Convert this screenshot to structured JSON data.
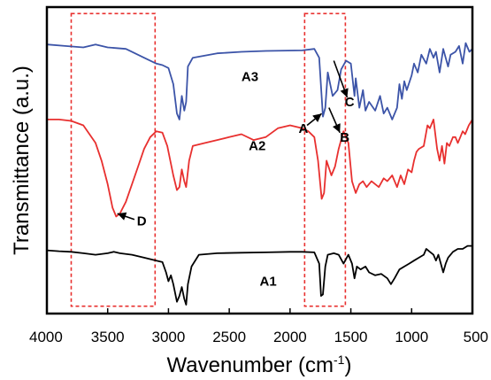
{
  "chart_data": {
    "type": "line",
    "title": "",
    "xlabel": "Wavenumber (cm",
    "xlabel_sup": "-1",
    "xlabel_close": ")",
    "ylabel": "Transmittance (a.u.)",
    "x_reversed": true,
    "xlim": [
      4000,
      500
    ],
    "ylim": [
      0,
      1
    ],
    "x_ticks": [
      {
        "value": 4000,
        "label": "4000"
      },
      {
        "value": 3500,
        "label": "3500"
      },
      {
        "value": 3000,
        "label": "3000"
      },
      {
        "value": 2500,
        "label": "2500"
      },
      {
        "value": 2000,
        "label": "2000"
      },
      {
        "value": 1500,
        "label": "1500"
      },
      {
        "value": 1000,
        "label": "1000"
      },
      {
        "value": 500,
        "label": "500"
      }
    ],
    "grid": false,
    "colors": {
      "A1": "#000000",
      "A2": "#e8302f",
      "A3": "#3c54a8",
      "highlight": "#e8302f"
    },
    "series": [
      {
        "name": "A3",
        "label_at": [
          2330,
          0.79
        ],
        "points": [
          [
            4000,
            0.915
          ],
          [
            3850,
            0.91
          ],
          [
            3700,
            0.905
          ],
          [
            3600,
            0.915
          ],
          [
            3500,
            0.905
          ],
          [
            3350,
            0.9
          ],
          [
            3200,
            0.87
          ],
          [
            3100,
            0.85
          ],
          [
            3050,
            0.845
          ],
          [
            3000,
            0.835
          ],
          [
            2960,
            0.78
          ],
          [
            2930,
            0.68
          ],
          [
            2910,
            0.66
          ],
          [
            2890,
            0.74
          ],
          [
            2870,
            0.69
          ],
          [
            2855,
            0.72
          ],
          [
            2840,
            0.84
          ],
          [
            2800,
            0.87
          ],
          [
            2600,
            0.885
          ],
          [
            2400,
            0.89
          ],
          [
            2200,
            0.893
          ],
          [
            1900,
            0.895
          ],
          [
            1800,
            0.9
          ],
          [
            1760,
            0.87
          ],
          [
            1730,
            0.67
          ],
          [
            1710,
            0.7
          ],
          [
            1690,
            0.82
          ],
          [
            1650,
            0.74
          ],
          [
            1610,
            0.76
          ],
          [
            1580,
            0.83
          ],
          [
            1540,
            0.86
          ],
          [
            1500,
            0.85
          ],
          [
            1470,
            0.74
          ],
          [
            1460,
            0.8
          ],
          [
            1430,
            0.7
          ],
          [
            1400,
            0.76
          ],
          [
            1380,
            0.69
          ],
          [
            1350,
            0.72
          ],
          [
            1300,
            0.69
          ],
          [
            1260,
            0.74
          ],
          [
            1230,
            0.68
          ],
          [
            1200,
            0.7
          ],
          [
            1160,
            0.66
          ],
          [
            1120,
            0.7
          ],
          [
            1100,
            0.78
          ],
          [
            1080,
            0.73
          ],
          [
            1060,
            0.79
          ],
          [
            1040,
            0.76
          ],
          [
            1000,
            0.81
          ],
          [
            980,
            0.85
          ],
          [
            950,
            0.82
          ],
          [
            920,
            0.88
          ],
          [
            880,
            0.85
          ],
          [
            850,
            0.9
          ],
          [
            820,
            0.87
          ],
          [
            800,
            0.89
          ],
          [
            770,
            0.82
          ],
          [
            740,
            0.9
          ],
          [
            700,
            0.84
          ],
          [
            680,
            0.88
          ],
          [
            640,
            0.89
          ],
          [
            610,
            0.91
          ],
          [
            580,
            0.85
          ],
          [
            555,
            0.92
          ],
          [
            525,
            0.89
          ],
          [
            500,
            0.9
          ]
        ]
      },
      {
        "name": "A2",
        "label_at": [
          2270,
          0.555
        ],
        "points": [
          [
            4000,
            0.66
          ],
          [
            3900,
            0.66
          ],
          [
            3800,
            0.655
          ],
          [
            3700,
            0.64
          ],
          [
            3600,
            0.58
          ],
          [
            3550,
            0.52
          ],
          [
            3500,
            0.44
          ],
          [
            3460,
            0.36
          ],
          [
            3430,
            0.33
          ],
          [
            3400,
            0.34
          ],
          [
            3350,
            0.38
          ],
          [
            3300,
            0.44
          ],
          [
            3250,
            0.5
          ],
          [
            3200,
            0.56
          ],
          [
            3150,
            0.6
          ],
          [
            3100,
            0.62
          ],
          [
            3050,
            0.615
          ],
          [
            3010,
            0.57
          ],
          [
            2960,
            0.47
          ],
          [
            2930,
            0.42
          ],
          [
            2910,
            0.43
          ],
          [
            2890,
            0.49
          ],
          [
            2870,
            0.45
          ],
          [
            2855,
            0.43
          ],
          [
            2830,
            0.52
          ],
          [
            2800,
            0.57
          ],
          [
            2700,
            0.58
          ],
          [
            2600,
            0.59
          ],
          [
            2500,
            0.6
          ],
          [
            2400,
            0.61
          ],
          [
            2300,
            0.59
          ],
          [
            2200,
            0.6
          ],
          [
            2100,
            0.63
          ],
          [
            2000,
            0.64
          ],
          [
            1900,
            0.63
          ],
          [
            1850,
            0.62
          ],
          [
            1800,
            0.6
          ],
          [
            1770,
            0.52
          ],
          [
            1740,
            0.39
          ],
          [
            1720,
            0.41
          ],
          [
            1700,
            0.52
          ],
          [
            1660,
            0.47
          ],
          [
            1630,
            0.5
          ],
          [
            1600,
            0.56
          ],
          [
            1560,
            0.62
          ],
          [
            1520,
            0.58
          ],
          [
            1490,
            0.45
          ],
          [
            1460,
            0.41
          ],
          [
            1430,
            0.44
          ],
          [
            1400,
            0.45
          ],
          [
            1370,
            0.43
          ],
          [
            1330,
            0.45
          ],
          [
            1300,
            0.44
          ],
          [
            1270,
            0.43
          ],
          [
            1230,
            0.46
          ],
          [
            1200,
            0.45
          ],
          [
            1160,
            0.47
          ],
          [
            1120,
            0.43
          ],
          [
            1090,
            0.47
          ],
          [
            1060,
            0.44
          ],
          [
            1030,
            0.49
          ],
          [
            1000,
            0.48
          ],
          [
            980,
            0.52
          ],
          [
            960,
            0.55
          ],
          [
            940,
            0.56
          ],
          [
            900,
            0.57
          ],
          [
            870,
            0.64
          ],
          [
            850,
            0.63
          ],
          [
            820,
            0.66
          ],
          [
            790,
            0.56
          ],
          [
            770,
            0.52
          ],
          [
            750,
            0.57
          ],
          [
            730,
            0.51
          ],
          [
            710,
            0.58
          ],
          [
            690,
            0.57
          ],
          [
            660,
            0.6
          ],
          [
            640,
            0.6
          ],
          [
            620,
            0.58
          ],
          [
            600,
            0.6
          ],
          [
            580,
            0.62
          ],
          [
            560,
            0.61
          ],
          [
            530,
            0.64
          ],
          [
            500,
            0.66
          ]
        ]
      },
      {
        "name": "A1",
        "label_at": [
          2180,
          0.095
        ],
        "points": [
          [
            4000,
            0.215
          ],
          [
            3900,
            0.212
          ],
          [
            3800,
            0.21
          ],
          [
            3700,
            0.205
          ],
          [
            3600,
            0.2
          ],
          [
            3500,
            0.205
          ],
          [
            3450,
            0.21
          ],
          [
            3400,
            0.205
          ],
          [
            3300,
            0.2
          ],
          [
            3200,
            0.19
          ],
          [
            3100,
            0.18
          ],
          [
            3050,
            0.175
          ],
          [
            3020,
            0.14
          ],
          [
            3000,
            0.11
          ],
          [
            2980,
            0.13
          ],
          [
            2960,
            0.1
          ],
          [
            2930,
            0.04
          ],
          [
            2910,
            0.06
          ],
          [
            2890,
            0.09
          ],
          [
            2870,
            0.05
          ],
          [
            2855,
            0.03
          ],
          [
            2840,
            0.1
          ],
          [
            2810,
            0.16
          ],
          [
            2750,
            0.2
          ],
          [
            2600,
            0.205
          ],
          [
            2400,
            0.207
          ],
          [
            2200,
            0.208
          ],
          [
            2000,
            0.21
          ],
          [
            1900,
            0.21
          ],
          [
            1800,
            0.208
          ],
          [
            1760,
            0.17
          ],
          [
            1745,
            0.06
          ],
          [
            1730,
            0.065
          ],
          [
            1710,
            0.16
          ],
          [
            1690,
            0.2
          ],
          [
            1640,
            0.205
          ],
          [
            1600,
            0.2
          ],
          [
            1560,
            0.17
          ],
          [
            1520,
            0.2
          ],
          [
            1490,
            0.17
          ],
          [
            1470,
            0.12
          ],
          [
            1450,
            0.16
          ],
          [
            1420,
            0.15
          ],
          [
            1380,
            0.16
          ],
          [
            1350,
            0.14
          ],
          [
            1300,
            0.13
          ],
          [
            1250,
            0.135
          ],
          [
            1200,
            0.12
          ],
          [
            1170,
            0.1
          ],
          [
            1140,
            0.12
          ],
          [
            1100,
            0.15
          ],
          [
            1060,
            0.16
          ],
          [
            1020,
            0.17
          ],
          [
            980,
            0.18
          ],
          [
            940,
            0.19
          ],
          [
            900,
            0.2
          ],
          [
            880,
            0.22
          ],
          [
            850,
            0.21
          ],
          [
            820,
            0.2
          ],
          [
            800,
            0.18
          ],
          [
            780,
            0.2
          ],
          [
            760,
            0.17
          ],
          [
            740,
            0.14
          ],
          [
            720,
            0.17
          ],
          [
            700,
            0.19
          ],
          [
            660,
            0.21
          ],
          [
            620,
            0.22
          ],
          [
            580,
            0.22
          ],
          [
            540,
            0.23
          ],
          [
            500,
            0.23
          ]
        ]
      }
    ],
    "highlight_regions": [
      {
        "x_from": 3800,
        "x_to": 3110,
        "y_from": 0.025,
        "y_to": 1.02
      },
      {
        "x_from": 1880,
        "x_to": 1545,
        "y_from": 0.025,
        "y_to": 1.02
      }
    ],
    "annotations": [
      {
        "text": "A",
        "text_at": [
          1890,
          0.615
        ],
        "arrow_from": [
          1860,
          0.64
        ],
        "arrow_to": [
          1740,
          0.68
        ]
      },
      {
        "text": "B",
        "text_at": [
          1550,
          0.585
        ],
        "arrow_from": [
          1680,
          0.7
        ],
        "arrow_to": [
          1590,
          0.615
        ]
      },
      {
        "text": "C",
        "text_at": [
          1510,
          0.705
        ],
        "arrow_from": [
          1640,
          0.86
        ],
        "arrow_to": [
          1530,
          0.735
        ]
      },
      {
        "text": "D",
        "text_at": [
          3220,
          0.3
        ],
        "arrow_from": [
          3280,
          0.32
        ],
        "arrow_to": [
          3420,
          0.34
        ]
      }
    ]
  }
}
